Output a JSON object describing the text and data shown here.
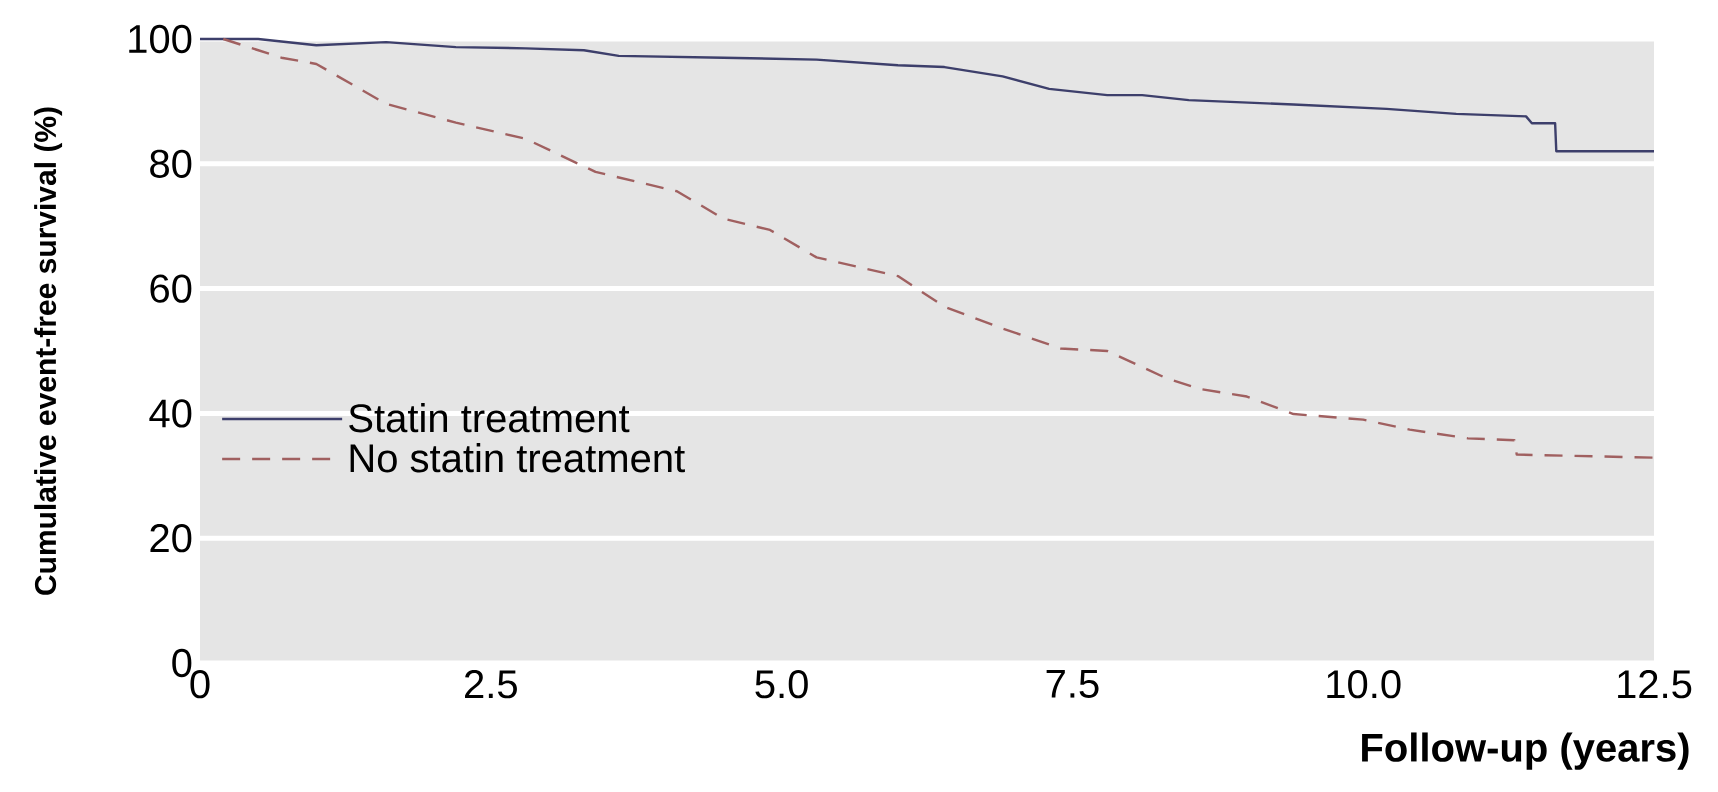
{
  "chart_data": {
    "type": "line",
    "xlabel": "Follow-up (years)",
    "ylabel": "Cumulative event-free survival (%)",
    "xlim": [
      0,
      12.5
    ],
    "ylim": [
      0,
      100
    ],
    "xticks": [
      0,
      {
        "value": 2.5,
        "label": "2.5"
      },
      {
        "value": 5,
        "label": "5.0"
      },
      {
        "value": 7.5,
        "label": "7.5"
      },
      {
        "value": 10,
        "label": "10.0"
      },
      {
        "value": 12.5,
        "label": "12.5"
      }
    ],
    "yticks": [
      0,
      20,
      40,
      60,
      80,
      100
    ],
    "grid": "y",
    "legend": "left",
    "series": [
      {
        "name": "Statin treatment",
        "color": "#3d3f6b",
        "line_style": "solid",
        "x": [
          0,
          0.5,
          1.0,
          1.6,
          2.2,
          2.8,
          3.3,
          3.6,
          4.5,
          5.3,
          6.0,
          6.4,
          6.9,
          7.3,
          7.8,
          8.1,
          8.5,
          9.4,
          10.2,
          10.8,
          11.4,
          11.45,
          11.65,
          11.66,
          12.5
        ],
        "values": [
          100,
          100,
          99,
          99.5,
          98.7,
          98.5,
          98.2,
          97.3,
          97,
          96.7,
          95.8,
          95.5,
          94,
          92,
          91,
          91,
          90.2,
          89.5,
          88.8,
          88,
          87.6,
          86.5,
          86.5,
          82,
          82
        ]
      },
      {
        "name": "No statin treatment",
        "color": "#a06060",
        "line_style": "dashed",
        "x": [
          0.2,
          0.7,
          1.0,
          1.6,
          2.2,
          2.8,
          3.4,
          4.1,
          4.5,
          4.9,
          5.3,
          6.0,
          6.4,
          6.9,
          7.4,
          7.8,
          8.3,
          8.6,
          9.0,
          9.4,
          10.0,
          10.4,
          10.9,
          11.3,
          11.32,
          12.5
        ],
        "values": [
          100,
          97,
          96,
          89.6,
          86.6,
          84,
          78.7,
          75.6,
          71.2,
          69.4,
          65,
          62,
          57.1,
          53.6,
          50.4,
          50,
          45.7,
          43.9,
          42.7,
          39.9,
          39,
          37.4,
          36,
          35.7,
          33.4,
          32.9
        ]
      }
    ]
  }
}
